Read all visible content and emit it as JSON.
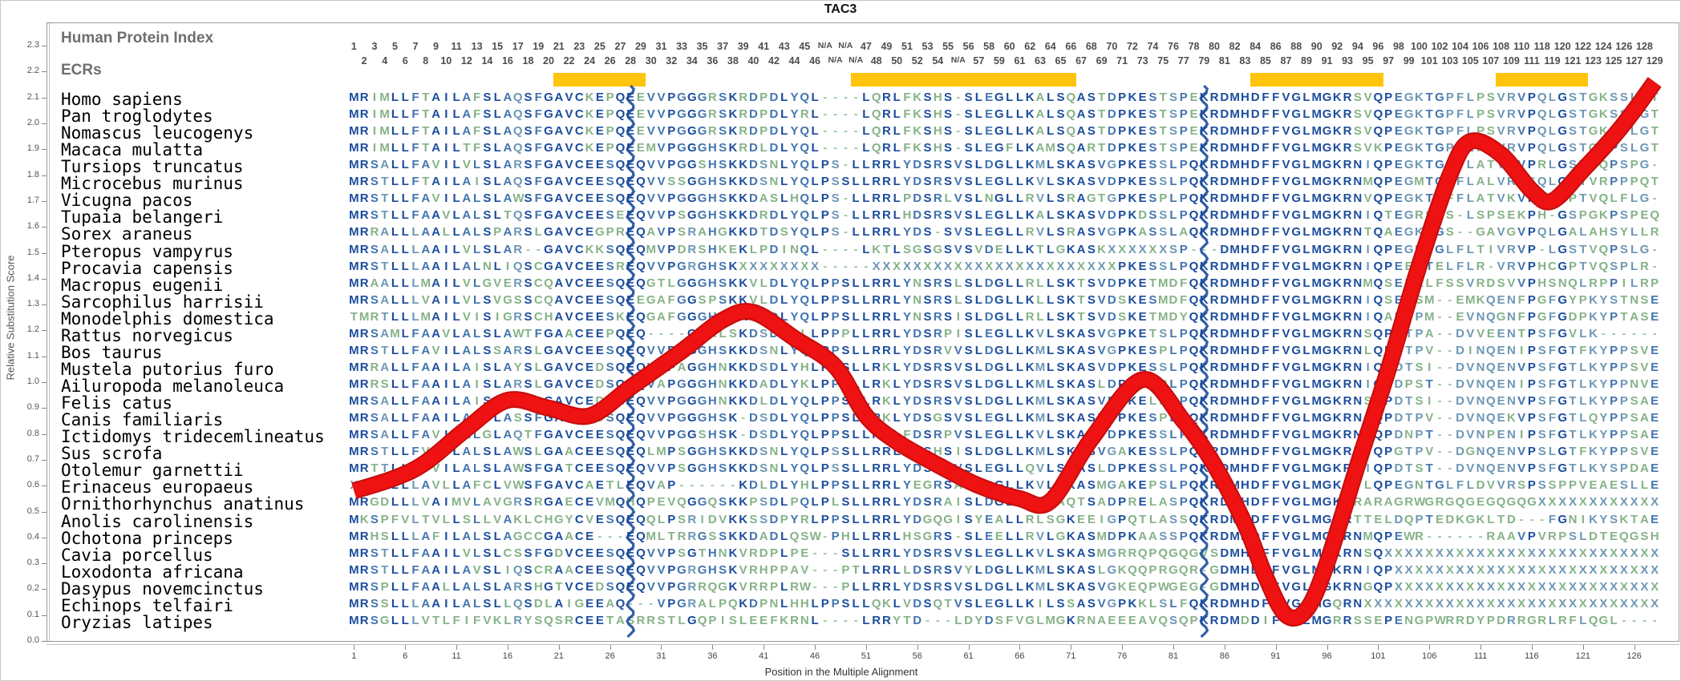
{
  "title": "TAC3",
  "y_axis": {
    "label": "Relative Substitution Score",
    "min": 0.0,
    "max": 2.3,
    "step": 0.1
  },
  "x_axis": {
    "label": "Position in the Multiple Alignment",
    "ticks": [
      1,
      6,
      11,
      16,
      21,
      26,
      31,
      36,
      41,
      46,
      51,
      56,
      61,
      66,
      71,
      76,
      81,
      86,
      91,
      96,
      101,
      106,
      111,
      116,
      121,
      126
    ]
  },
  "header": {
    "protein_index_label": "Human Protein Index",
    "ecrs_label": "ECRs",
    "index_row_odd": [
      "1",
      "3",
      "5",
      "7",
      "9",
      "11",
      "13",
      "15",
      "17",
      "19",
      "21",
      "23",
      "25",
      "27",
      "29",
      "31",
      "33",
      "35",
      "37",
      "39",
      "41",
      "43",
      "45",
      "N/A",
      "N/A",
      "47",
      "49",
      "51",
      "53",
      "55",
      "56",
      "58",
      "60",
      "62",
      "64",
      "66",
      "68",
      "70",
      "72",
      "74",
      "76",
      "78",
      "80",
      "82",
      "84",
      "86",
      "88",
      "90",
      "92",
      "94",
      "96",
      "98",
      "100",
      "102",
      "104",
      "106",
      "108",
      "110",
      "118",
      "120",
      "122",
      "124",
      "126",
      "128"
    ],
    "index_row_even": [
      "2",
      "4",
      "6",
      "8",
      "10",
      "12",
      "14",
      "16",
      "18",
      "20",
      "22",
      "24",
      "26",
      "28",
      "30",
      "32",
      "34",
      "36",
      "38",
      "40",
      "42",
      "44",
      "46",
      "N/A",
      "N/A",
      "48",
      "50",
      "52",
      "54",
      "N/A",
      "57",
      "59",
      "61",
      "63",
      "65",
      "67",
      "69",
      "71",
      "73",
      "75",
      "77",
      "79",
      "81",
      "83",
      "85",
      "87",
      "89",
      "91",
      "93",
      "95",
      "97",
      "99",
      "101",
      "103",
      "105",
      "107",
      "109",
      "111",
      "119",
      "121",
      "123",
      "125",
      "127",
      "129"
    ]
  },
  "ecr_blocks": [
    {
      "start_col": 21,
      "end_col": 29
    },
    {
      "start_col": 50,
      "end_col": 71
    },
    {
      "start_col": 89,
      "end_col": 101
    },
    {
      "start_col": 113,
      "end_col": 121
    }
  ],
  "colors": {
    "conserved_high": "#1b4c9c",
    "conserved_mid": "#4274ae",
    "conserved_low": "#6d97b4",
    "low_similarity": "#85b287",
    "gap": "#9bc4a0",
    "ecr_bar": "#ffc40c",
    "score_line": "#ee1212",
    "score_line_edge": "#c50d0d",
    "exon_line": "#1b4c9c"
  },
  "alignment": {
    "species": [
      {
        "name": "Homo sapiens",
        "sequence": "MRIMLLFTAILAFSLAQSFGAVCKEPQEEVVPGGGRSKRDPDLYQL----LQRLFKSHS-SLEGLLKALSQASTDPKESTSPEKRDMHDFFVGLMGKRSVQPEGKTGPFLPSVRVPQLGSTGKSSLGT"
      },
      {
        "name": "Pan troglodytes",
        "sequence": "MRIMLLFTAILAFSLAQSFGAVCKEPQEEVVPGGGRSKRDPDLYRL----LQRLFKSHS-SLEGLLKALSQASTDPKESTSPEKRDMHDFFVGLMGKRSVQPEGKTGPFLPSVRVPQLGSTGKSSLGT"
      },
      {
        "name": "Nomascus leucogenys",
        "sequence": "MRIMLLFTAILAFSLAQSFGAVCKEPQEEVVPGGGRSKRDPDLYQL----LQRLFKSHS-SLEGLLKALSQASTDPKESTSPEKRDMHDFFVGLMGKRSVQPEGKTGPFLPSVRVPQLGSTGKLSLGT"
      },
      {
        "name": "Macaca mulatta",
        "sequence": "MRIMLLFTAILTFSLAQSFGAVCKEPQEEMVPGGGHSKRDLDLYQL----LQRLFKSHS-SLEGFLKAMSQARTDPKESTSPEKRDMHDFFVGLMGKRSVKPEGKTGPFLPSVRVPQLGSTGKPSLGT"
      },
      {
        "name": "Tursiops truncatus",
        "sequence": "MRSALLFAVILVLSLARSFGAVCEESQEQVVPGGSHSKKDSNLYQLPS-LLRRLYDSRSVSLDGLLKMLSKASVGPKESSLPQKRDMHDFFVGLMGKRNIQPEGKTGLFLATVRVPRLGSTVQPSPG-"
      },
      {
        "name": "Microcebus murinus",
        "sequence": "MRSTLLFTAILAISLAQSFGAVCEESQEQVVSSGGHSKKDSNLYQLPSSLLRRLYDSRSVSLEGLLKVLSKASVDPKESSLPQKRDMHDFFVGLMGKRNMQPEGMTGIFLALVRVSQLGSTVRPPPQT"
      },
      {
        "name": "Vicugna pacos",
        "sequence": "MRSTLLFAVILALSLAWSFGAVCEESQEQVVPGGGHSKKDASLHQLPS-LLRRLPDSRLVSLNGLLRVLSRAGTGPKESPLPQKRDMHDFFVGLMGKRNVQPEGKTGFFLATVKVPQLGPTVQLFLG-"
      },
      {
        "name": "Tupaia belangeri",
        "sequence": "MRSTLLFAAVLALSLTQSFGAVCEESEEQVVPSGGHSKKDRDLYQLPS-LLRRLHDSRSVSLEGLLKALSKASVDPKDSSLPQKRDMHDFFVGLMGKRNIQTEGRSGS-LSPSEKPH-GSPGKPSPEQ"
      },
      {
        "name": "Sorex araneus",
        "sequence": "MRRALLLAALLALSPARSLGAVCEGPREQAVPSRAHGKKDTDSYQLPS-LLRRLYDS-SVSLEGLLRVLSRASVGPKASSLAQKRDMHDFFVGLMGKRNTQAEGKTGS--GAVGVPQLGALAHSYLLR"
      },
      {
        "name": "Pteropus vampyrus",
        "sequence": "MRSALLLAAILVLSLAR--GAVCKKSQEQMVPDRSHKEKLPDINQL----LKTLSGSGSVSVDELLKTLGKASKXXXXXXSP---DMHDFFVGLMGKRNIQPEGKTGLFLTIVRVP-LGSTVQPSLG-"
      },
      {
        "name": "Procavia capensis",
        "sequence": "MRSTLLLAAILALNLIQSCGAVCEESREQVVPGRGHSKXXXXXXXX-----XXXXXXXXXXXXXXXXXXXXXXXXPKESSLPQKRDMHDFFVGLMGKRNIQPEEKTELFLR-VRVPHCGPTVQSPLR-"
      },
      {
        "name": "Macropus eugenii",
        "sequence": "MRAALLLMAILVLGVERSCQAVCEESQEQGTLGGGHSKKVLDLYQLPPSLLRRLYNSRSLSLDGLLRLLSKTSVDPKETMDFQKRDMHDFFVGLMGKRNMQSEEKLFSSVRDSVVPHSNQLRPPILRP"
      },
      {
        "name": "Sarcophilus harrisii",
        "sequence": "MRSALLLVAILVLSVGSSCQAVCEESQEEGAFGGSPSKKVLDLYQLPPSLLRRLYNSRSLSLDGLLKLLSKTSVDSKESMDFQKRDMHDFFVGLMGKRNIQSEPSM--EMKQENFPGFGYPKYSTNSE"
      },
      {
        "name": "Monodelphis domestica",
        "sequence": "TMRTLLLMAILVISIGRSCHAVCEESKEQGAFGGGHSKKVLDLYQLPPSLLRRLYNSRSISLDGLLRLLSKTSVDSKETMDYQKRDMHDFFVGLMGKRNIQAEPPM--EVNQGNFPGFGDPKYPTASE"
      },
      {
        "name": "Rattus norvegicus",
        "sequence": "MRSAMLFAAVLALSLAWTFGAACEEPQEQ----GGRLSKDSDLSLLPPPLLRRLYDSRPISLEGLLKVLSKASVGPKETSLPQKRDMHDFFVGLMGKRNSQPDTPA--DVVEENTPSFGVLK------"
      },
      {
        "name": "Bos taurus",
        "sequence": "MRSTLLFAVILALSSARSLGAVCEESQEQVVPGGGHSKKDSNLYQLPPSLLRRLYDSRVVSLDGLLKMLSKASVGPKESPLPQKRDMHDFFVGLMGKRNLQPDTPV--DINQENIPSFGTFKYPPSVE"
      },
      {
        "name": "Mustela putorius furo",
        "sequence": "MRRALLFAAILAISLAYSLGAVCEDSQEQVVPAGGHNKKDSDLYHLPSSLLRKLYDSRSVSLDGLLKMLSKASVDPKESSLPQKRDMHDFFVGLMGKRNIQPDTSI--DVNQENVPSFGTLKYPPSVE"
      },
      {
        "name": "Ailuropoda melanoleuca",
        "sequence": "MRRSLLFAAILAISLARSLGAVCEDSQEQVAPGGGHNKKDADLYKLPPSLLRKLYDSRSVSLDGLLKMLSKASLDPKESPLPQKRDMHDFFVGLMGKRNIQPDPST--DVNQENIPSFGTLKYPPNVE"
      },
      {
        "name": "Felis catus",
        "sequence": "MRSALLFAAILAISLVHGLGAVCEDSREQVVPGGGHNKKDLDLYQLPPSLLRKLYDSRSVSLDGLLKMLSKASVDPKELPLPQKRDMHDFFVGLMGKRNSQPDTSI--DVNQENVPSFGTLKYPPSAE"
      },
      {
        "name": "Canis familiaris",
        "sequence": "MRSALLFAAILAISLASSFGAVCEDSQEQVVPGGGHSK-DSDLYQLPPSLLRKLYDSGSVSLEGLLKMLSKASVDPKESPLPQKRDMHDFFVGLMGKRNIQPDTPV--DVNQEKVPSFGTLQYPPSAE"
      },
      {
        "name": "Ictidomys tridecemlineatus",
        "sequence": "MRSALLFAVILALGLAQTFGAVCEESQEQVVPGGSHSK-DSDLYQLPPSLLRRLFDSRPVSLEGLLKVLSKASVDPKESSLPQKRDMHDFFVGLMGKRNSQPDNPT--DVNPENIPSFGTLKYPPSAE"
      },
      {
        "name": "Sus scrofa",
        "sequence": "MRSTLLFVAILALSLAWSLGAACEESQEQLMPSGGHSKKDSNLYQLPSSLLRRLCDSHSISLDGLLKMLSKASVGAKESSLPQKRDMHDFFVGLMGKRNIQPGTPV--DGNQENVPSLGTFKYPPSVE"
      },
      {
        "name": "Otolemur garnettii",
        "sequence": "MRTTLLFIVILALSLAWSFGATCEESQEQVVPSGGHSKKDSNLYQLPSSLLRRLYDSRSVSLEGLLQVLSKASLDPKESSLPQKRDMHDFFVGLMGKRNIQPDTST--DVNQENVPSFGTLKYSPDAE"
      },
      {
        "name": "Erinaceus europaeus",
        "sequence": "XRSALLLAVLLAFCLVWSFGAVCAETLEQVAP------KDLDLYHLPPSLLRRLYEGRSASLDGLLKVLSKASMGAKEPSLPQKRDMHDFFVGLMGKRTLQPEGNTGLFLDVVRSPSSPPVEAESLLE"
      },
      {
        "name": "Ornithorhynchus anatinus",
        "sequence": "MRGDLLLVAIMVLAVGRSRGAECEVMQHQPEVQGGQSKKPSDLPQLPLSLLRRLYDSRAISLDGLLGLLAQTSADPRELASPQKRDMHDFFVGLMGKRRARAGRWGRGQGEGQGQGXXXXXXXXXXXX"
      },
      {
        "name": "Anolis carolinensis",
        "sequence": "MKSPFVLTVLLSLLVAKLCHGYCVESQEQQLPSRIDVKKSSDPYRLPPSLLRRLYDGQGISYEALLRLSGKEEIGPQTLASSQKRDMHDFFVGLMGKRTTELDQPTEDKGKLTD---FGNIKYSKTAE"
      },
      {
        "name": "Ochotona princeps",
        "sequence": "MRHSLLLAFILALSLAGCCGAACE---EQMLTRRGSSKKDADLQSW-PHLLRRLHSGRS-SLEELLRVLGKASMDPKAASSPQKRDMHDFFVGLMGKRNMQPEWR------RAAVPVRPSLDTEQGSH"
      },
      {
        "name": "Cavia porcellus",
        "sequence": "MRSTLLFAAILVLSLCSSFGDVCEESQEQVVPSGTHNKVRDPLPE---SLLRRLYDSRSVSLEGLLKVLSKASMGRRQPQGQGVSDMHDFFVGLMGKRNSQXXXXXXXXXXXXXXXXXXXXXXXXXXX"
      },
      {
        "name": "Loxodonta africana",
        "sequence": "MRSTLLFAAILAVSLIQSCRAACEESQEQVVPGRGHSKVRHPPAV---PTLRRLLDSRSVYLDGLLKMLSKASLGKQQPRGQR-GDMHDFFVGLMGKRNIQPXXXXXXXXXXXXXXXXXXXXXXXXXX"
      },
      {
        "name": "Dasypus novemcinctus",
        "sequence": "MRSPLLFAALLALSLARSHGTVCEDSQEQVVPGRRQGKVRRPLRW---PLLRRLYDSRSVSLDGLLKMLSKASVGKEQPWGEG-GDMHDFFVGLMGKRNGQPXXXXXXXXXXXXXXXXXXXXXXXXXX"
      },
      {
        "name": "Echinops telfairi",
        "sequence": "MRSSLLLAAILALSLLQSDLAIGEEAQ---VPGRALPQKDPNLHHLPPSLLQKLVDSQTVSLEGLLKILSSASVGPKKLSLFQKRDMHDFFVGLMGQRNXXXXXXXXXXXXXXXXXXXXXXXXXXXXX"
      },
      {
        "name": "Oryzias latipes",
        "sequence": "MRSGLLLVTLFIFVKLRYSQSRCEETASRRSTLGQPISLEEFKRNL----LRRYTD---LDYDSFVGLMGKRNAEEEAVQSQPKRDMDDIFVGLMGRRSSEPENGPWRRDYPDRRGRLRFLQGL----"
      }
    ]
  },
  "chart_data": {
    "type": "line",
    "title": "TAC3",
    "xlabel": "Position in the Multiple Alignment",
    "ylabel": "Relative Substitution Score",
    "xlim": [
      1,
      128
    ],
    "ylim": [
      0.0,
      2.3
    ],
    "exon_boundary_columns": [
      28,
      84
    ],
    "series": [
      {
        "name": "relative substitution score",
        "points": [
          [
            1,
            0.58
          ],
          [
            5,
            0.63
          ],
          [
            8,
            0.69
          ],
          [
            12,
            0.82
          ],
          [
            16,
            0.93
          ],
          [
            20,
            0.9
          ],
          [
            24,
            0.87
          ],
          [
            28,
            0.98
          ],
          [
            33,
            1.12
          ],
          [
            37,
            1.24
          ],
          [
            40,
            1.27
          ],
          [
            44,
            1.17
          ],
          [
            48,
            1.06
          ],
          [
            51,
            0.87
          ],
          [
            54,
            0.77
          ],
          [
            58,
            0.68
          ],
          [
            62,
            0.6
          ],
          [
            66,
            0.55
          ],
          [
            69,
            0.54
          ],
          [
            73,
            0.78
          ],
          [
            78,
            1.01
          ],
          [
            82,
            0.85
          ],
          [
            85,
            0.68
          ],
          [
            88,
            0.45
          ],
          [
            90,
            0.25
          ],
          [
            92,
            0.1
          ],
          [
            94,
            0.12
          ],
          [
            96,
            0.3
          ],
          [
            99,
            0.68
          ],
          [
            102,
            1.05
          ],
          [
            105,
            1.45
          ],
          [
            108,
            1.8
          ],
          [
            110,
            1.93
          ],
          [
            113,
            1.88
          ],
          [
            116,
            1.74
          ],
          [
            118,
            1.7
          ],
          [
            121,
            1.82
          ],
          [
            124,
            1.95
          ],
          [
            126,
            2.05
          ],
          [
            128,
            2.16
          ]
        ]
      }
    ]
  }
}
